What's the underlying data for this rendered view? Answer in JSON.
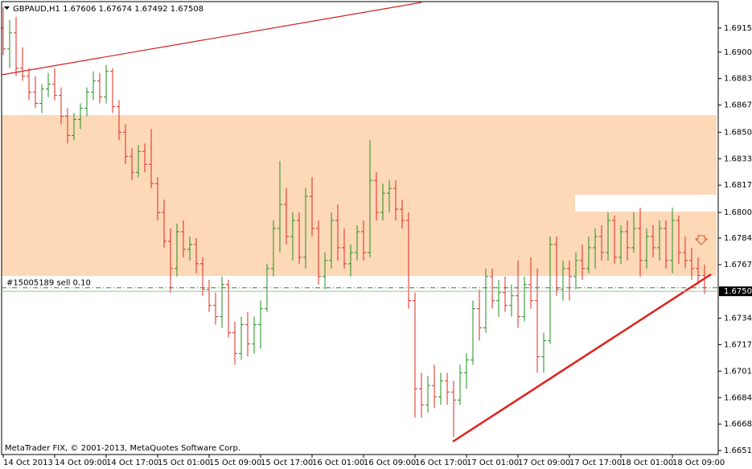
{
  "chart_data": {
    "type": "ohlc",
    "symbol": "GBPAUD,H1",
    "up_color": "#1f8f1f",
    "down_color": "#e0281e",
    "categories": [
      "14 Oct 2013",
      null,
      null,
      null,
      null,
      null,
      null,
      null,
      "14 Oct 09:00",
      null,
      null,
      null,
      null,
      null,
      null,
      null,
      "14 Oct 17:00",
      null,
      null,
      null,
      null,
      null,
      null,
      null,
      "15 Oct 01:00",
      null,
      null,
      null,
      null,
      null,
      null,
      null,
      "15 Oct 09:00",
      null,
      null,
      null,
      null,
      null,
      null,
      null,
      "15 Oct 17:00",
      null,
      null,
      null,
      null,
      null,
      null,
      null,
      "16 Oct 01:00",
      null,
      null,
      null,
      null,
      null,
      null,
      null,
      "16 Oct 09:00",
      null,
      null,
      null,
      null,
      null,
      null,
      null,
      "16 Oct 17:00",
      null,
      null,
      null,
      null,
      null,
      null,
      null,
      "17 Oct 01:00",
      null,
      null,
      null,
      null,
      null,
      null,
      null,
      "17 Oct 09:00",
      null,
      null,
      null,
      null,
      null,
      null,
      null,
      "17 Oct 17:00",
      null,
      null,
      null,
      null,
      null,
      null,
      null,
      "18 Oct 01:00",
      null,
      null,
      null,
      null,
      null,
      null,
      null,
      "18 Oct 09:00",
      null,
      null,
      null,
      null,
      null
    ],
    "open": [
      1.6915,
      1.6902,
      1.6912,
      1.689,
      1.6885,
      1.6875,
      1.6868,
      1.6877,
      1.688,
      1.6873,
      1.686,
      1.6848,
      1.6858,
      1.6865,
      1.6875,
      1.6882,
      1.6872,
      1.6888,
      1.6866,
      1.685,
      1.6835,
      1.6825,
      1.6838,
      1.683,
      1.6818,
      1.68,
      1.6782,
      1.6765,
      1.6788,
      1.6777,
      1.678,
      1.6768,
      1.6752,
      1.6742,
      1.6735,
      1.6755,
      1.6725,
      1.6712,
      1.673,
      1.6718,
      1.673,
      1.674,
      1.6765,
      1.679,
      1.6805,
      1.6785,
      1.6795,
      1.6772,
      1.681,
      1.679,
      1.676,
      1.677,
      1.6795,
      1.6778,
      1.6768,
      1.6775,
      1.6788,
      1.6775,
      1.682,
      1.68,
      1.6812,
      1.6815,
      1.6802,
      1.6795,
      1.6745,
      1.669,
      1.668,
      1.6692,
      1.6685,
      1.6695,
      1.6688,
      1.6683,
      1.67,
      1.6708,
      1.674,
      1.6728,
      1.676,
      1.6745,
      1.675,
      1.6742,
      1.6748,
      1.6735,
      1.6755,
      1.6745,
      1.671,
      1.672,
      1.678,
      1.6752,
      1.6765,
      1.676,
      1.677,
      1.6765,
      1.6778,
      1.6785,
      1.6775,
      1.6795,
      1.6772,
      1.6788,
      1.6778,
      1.679,
      1.677,
      1.6785,
      1.6778,
      1.679,
      1.677,
      1.6795,
      1.6775,
      1.677,
      1.6765,
      1.67606
    ],
    "high": [
      1.6928,
      1.692,
      1.6922,
      1.6903,
      1.689,
      1.6885,
      1.688,
      1.6887,
      1.689,
      1.6878,
      1.6865,
      1.6862,
      1.6868,
      1.6878,
      1.6888,
      1.6887,
      1.6892,
      1.689,
      1.687,
      1.6855,
      1.684,
      1.6842,
      1.6843,
      1.6852,
      1.6822,
      1.6808,
      1.679,
      1.6793,
      1.6795,
      1.6785,
      1.6784,
      1.6772,
      1.6758,
      1.675,
      1.676,
      1.6758,
      1.6732,
      1.6735,
      1.6738,
      1.6735,
      1.6745,
      1.6768,
      1.6795,
      1.6832,
      1.6815,
      1.68,
      1.68,
      1.6815,
      1.6822,
      1.6795,
      1.6775,
      1.68,
      1.6805,
      1.679,
      1.678,
      1.6792,
      1.6795,
      1.6845,
      1.6825,
      1.6818,
      1.682,
      1.682,
      1.6808,
      1.68,
      1.675,
      1.67,
      1.6698,
      1.6705,
      1.67,
      1.67,
      1.6695,
      1.6705,
      1.6712,
      1.6745,
      1.6752,
      1.6765,
      1.6765,
      1.6758,
      1.676,
      1.6755,
      1.677,
      1.676,
      1.6772,
      1.6765,
      1.6725,
      1.6785,
      1.6785,
      1.677,
      1.677,
      1.6775,
      1.678,
      1.6785,
      1.679,
      1.6792,
      1.68,
      1.6798,
      1.6792,
      1.6795,
      1.68,
      1.6803,
      1.679,
      1.6792,
      1.6795,
      1.6795,
      1.6803,
      1.6798,
      1.6785,
      1.6778,
      1.6772,
      1.67674
    ],
    "low": [
      1.6898,
      1.689,
      1.6885,
      1.6882,
      1.687,
      1.6865,
      1.6862,
      1.6872,
      1.687,
      1.6855,
      1.6843,
      1.6845,
      1.6852,
      1.686,
      1.687,
      1.6868,
      1.6868,
      1.6862,
      1.6845,
      1.683,
      1.682,
      1.6822,
      1.6825,
      1.6815,
      1.6795,
      1.6778,
      1.675,
      1.676,
      1.6772,
      1.677,
      1.6762,
      1.6748,
      1.6738,
      1.673,
      1.6728,
      1.6722,
      1.6705,
      1.6708,
      1.671,
      1.6712,
      1.6715,
      1.6738,
      1.676,
      1.6775,
      1.678,
      1.677,
      1.6768,
      1.6765,
      1.6785,
      1.6755,
      1.6752,
      1.6765,
      1.677,
      1.6765,
      1.676,
      1.677,
      1.677,
      1.6772,
      1.6795,
      1.6795,
      1.68,
      1.6795,
      1.679,
      1.674,
      1.6672,
      1.6672,
      1.6675,
      1.6678,
      1.668,
      1.668,
      1.666,
      1.668,
      1.669,
      1.6705,
      1.672,
      1.6725,
      1.674,
      1.6735,
      1.6738,
      1.6735,
      1.6728,
      1.6732,
      1.674,
      1.67,
      1.67,
      1.6718,
      1.6748,
      1.6745,
      1.6745,
      1.6752,
      1.6758,
      1.6762,
      1.6765,
      1.677,
      1.677,
      1.6768,
      1.6768,
      1.677,
      1.6775,
      1.676,
      1.6765,
      1.6772,
      1.677,
      1.6765,
      1.6762,
      1.6768,
      1.6765,
      1.6758,
      1.6755,
      1.67492
    ],
    "close": [
      1.6902,
      1.6912,
      1.689,
      1.6885,
      1.6875,
      1.6868,
      1.6877,
      1.688,
      1.6873,
      1.686,
      1.6848,
      1.6858,
      1.6865,
      1.6875,
      1.6882,
      1.6872,
      1.6888,
      1.6866,
      1.685,
      1.6835,
      1.6825,
      1.6838,
      1.683,
      1.6818,
      1.68,
      1.6782,
      1.6765,
      1.6788,
      1.6777,
      1.678,
      1.6768,
      1.6752,
      1.6742,
      1.6735,
      1.6755,
      1.6725,
      1.6712,
      1.673,
      1.6718,
      1.673,
      1.674,
      1.6765,
      1.679,
      1.6805,
      1.6785,
      1.6795,
      1.6772,
      1.681,
      1.679,
      1.676,
      1.677,
      1.6795,
      1.6778,
      1.6768,
      1.6775,
      1.6788,
      1.6775,
      1.682,
      1.68,
      1.6812,
      1.6815,
      1.6802,
      1.6795,
      1.6745,
      1.669,
      1.668,
      1.6692,
      1.6685,
      1.6695,
      1.6688,
      1.6683,
      1.67,
      1.6708,
      1.674,
      1.6728,
      1.676,
      1.6745,
      1.675,
      1.6742,
      1.6748,
      1.6735,
      1.6755,
      1.6745,
      1.671,
      1.672,
      1.678,
      1.6752,
      1.6765,
      1.676,
      1.677,
      1.6765,
      1.6778,
      1.6785,
      1.6775,
      1.6795,
      1.6772,
      1.6788,
      1.6778,
      1.679,
      1.677,
      1.6785,
      1.6778,
      1.679,
      1.677,
      1.6795,
      1.6775,
      1.677,
      1.6765,
      1.67606,
      1.67508
    ],
    "ylim": [
      1.6649,
      1.69315
    ],
    "yticks": [
      {
        "value": 1.6915,
        "label": "1.69150"
      },
      {
        "value": 1.69,
        "label": "1.69000"
      },
      1.68835,
      1.6867,
      {
        "value": 1.685,
        "label": "1.68500"
      },
      1.68335,
      {
        "value": 1.6817,
        "label": "1.68170"
      },
      {
        "value": 1.68,
        "label": "1.68000"
      },
      {
        "value": 1.6784,
        "label": "1.67840"
      },
      1.67675,
      {
        "value": 1.6734,
        "label": "1.67340"
      },
      1.67175,
      {
        "value": 1.6701,
        "label": "1.67010"
      },
      1.66845,
      {
        "value": 1.6668,
        "label": "1.66680"
      },
      1.66515
    ],
    "order": {
      "label": "#15005189 sell 0.10",
      "price": 1.6753,
      "color": "#1f8f1f"
    },
    "footer": "MetaTrader FIX, © 2001-2013, MetaQuotes Software Corp."
  }
}
